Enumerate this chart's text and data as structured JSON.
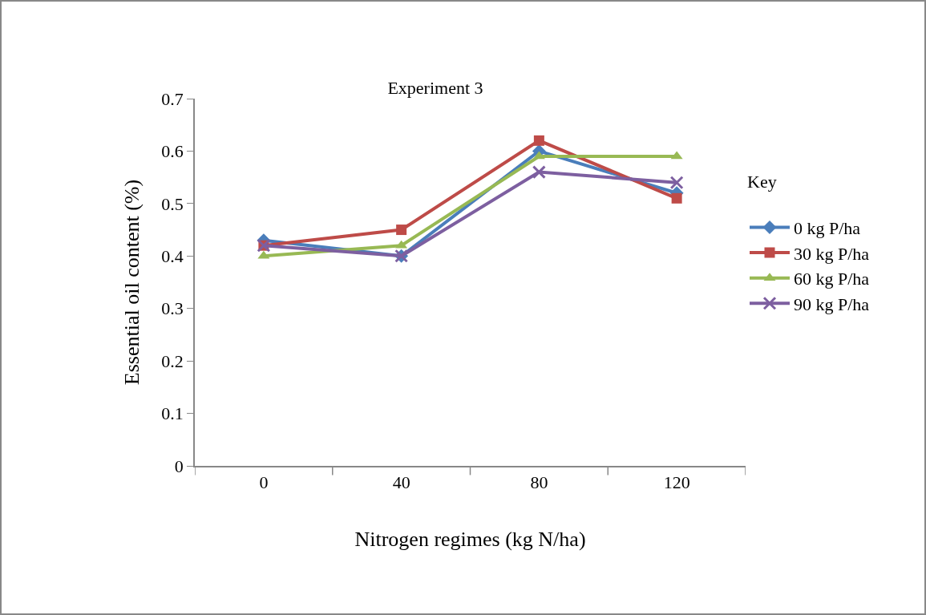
{
  "chart_data": {
    "type": "line",
    "title": "Experiment 3",
    "xlabel": "Nitrogen regimes (kg N/ha)",
    "ylabel": "Essential oil content (%)",
    "legend_title": "Key",
    "legend": "right",
    "categories": [
      "0",
      "40",
      "80",
      "120"
    ],
    "ylim": [
      0,
      0.7
    ],
    "yticks": [
      {
        "value": 0,
        "label": "0"
      },
      0.1,
      0.2,
      0.3,
      0.4,
      0.5,
      0.6,
      0.7
    ],
    "grid": false,
    "series": [
      {
        "name": "0 kg P/ha",
        "color": "#4a7ebb",
        "marker": "diamond",
        "values": [
          0.43,
          0.4,
          0.6,
          0.52
        ]
      },
      {
        "name": "30 kg P/ha",
        "color": "#be4b48",
        "marker": "square",
        "values": [
          0.42,
          0.45,
          0.62,
          0.51
        ]
      },
      {
        "name": "60 kg P/ha",
        "color": "#98b954",
        "marker": "triangle",
        "values": [
          0.4,
          0.42,
          0.59,
          0.59
        ]
      },
      {
        "name": "90 kg P/ha",
        "color": "#7d5fa0",
        "marker": "cross",
        "values": [
          0.42,
          0.4,
          0.56,
          0.54
        ]
      }
    ]
  }
}
